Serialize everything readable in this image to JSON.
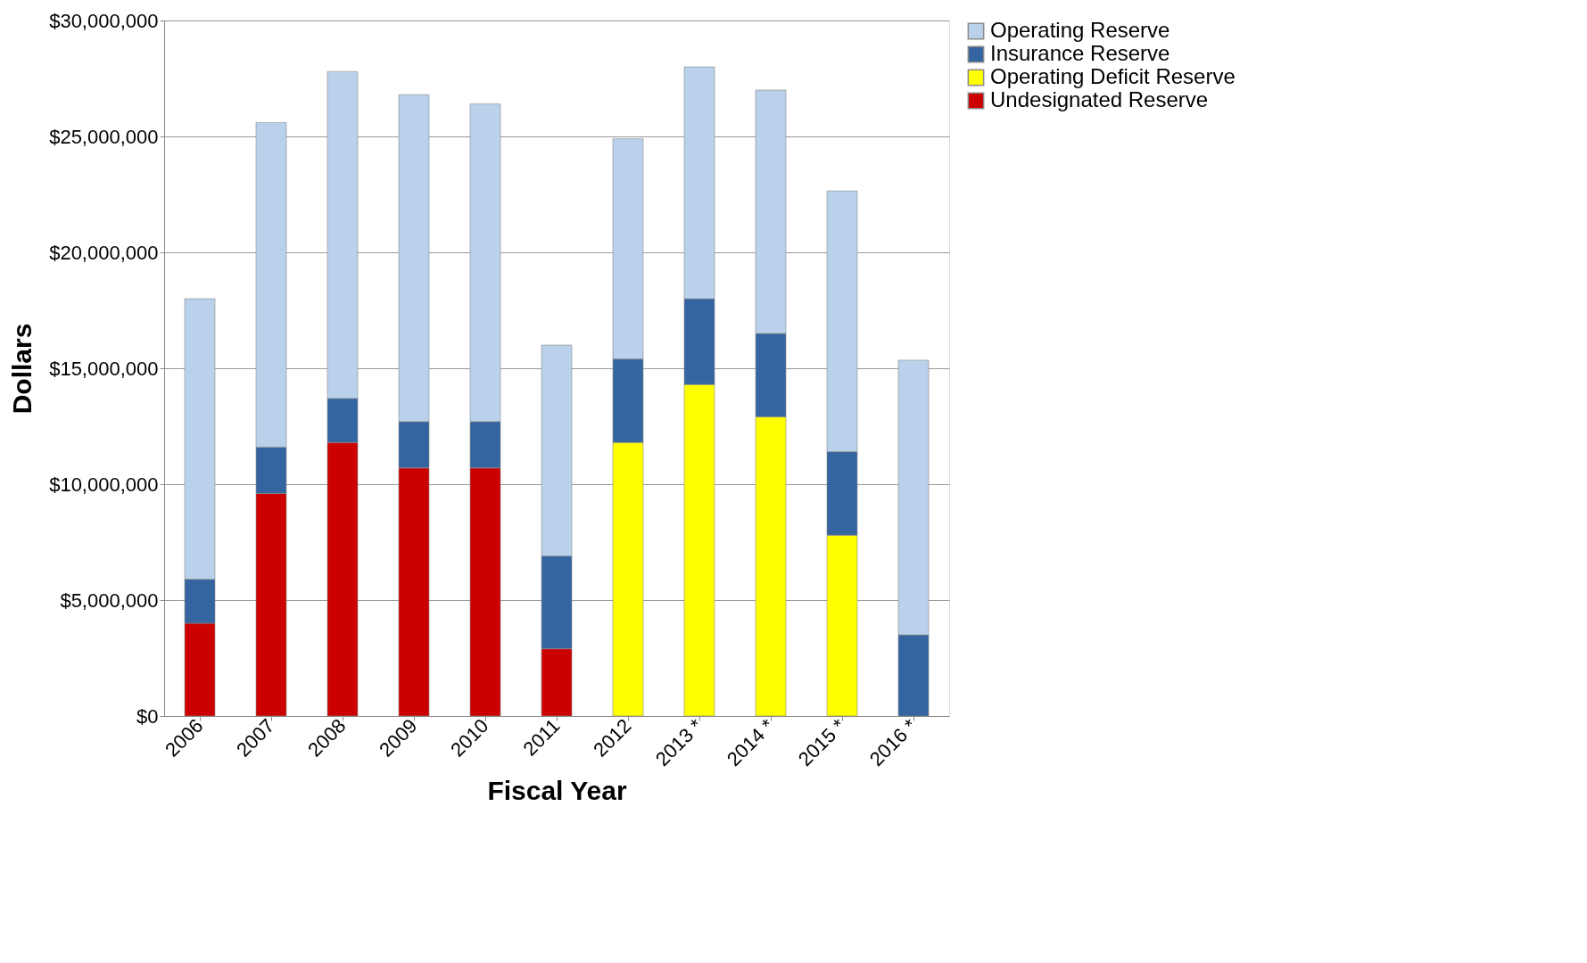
{
  "chart_data": {
    "type": "bar",
    "stacked": true,
    "xlabel": "Fiscal Year",
    "ylabel": "Dollars",
    "categories": [
      "2006",
      "2007",
      "2008",
      "2009",
      "2010",
      "2011",
      "2012",
      "2013 *",
      "2014 *",
      "2015 *",
      "2016 *"
    ],
    "series": [
      {
        "name": "Undesignated Reserve",
        "color": "#cc0000",
        "values": [
          4000000,
          9600000,
          11800000,
          10700000,
          10700000,
          2900000,
          null,
          null,
          null,
          null,
          null
        ]
      },
      {
        "name": "Operating Deficit Reserve",
        "color": "#ffff00",
        "values": [
          null,
          null,
          null,
          null,
          null,
          null,
          11800000,
          14300000,
          12900000,
          7800000,
          null
        ]
      },
      {
        "name": "Insurance Reserve",
        "color": "#3565a0",
        "values": [
          1900000,
          2000000,
          1900000,
          2000000,
          2000000,
          4000000,
          3600000,
          3700000,
          3600000,
          3600000,
          3500000
        ]
      },
      {
        "name": "Operating Reserve",
        "color": "#b9d1ea",
        "values": [
          12100000,
          14000000,
          14100000,
          14100000,
          13700000,
          9100000,
          9500000,
          10000000,
          10500000,
          11250000,
          11850000
        ]
      }
    ],
    "ylim": [
      0,
      30000000
    ],
    "yticks": [
      {
        "value": 0,
        "label": "$0"
      },
      {
        "value": 5000000,
        "label": "$5,000,000"
      },
      {
        "value": 10000000,
        "label": "$10,000,000"
      },
      {
        "value": 15000000,
        "label": "$15,000,000"
      },
      {
        "value": 20000000,
        "label": "$20,000,000"
      },
      {
        "value": 25000000,
        "label": "$25,000,000"
      },
      {
        "value": 30000000,
        "label": "$30,000,000"
      }
    ],
    "grid": "y",
    "legend": "right"
  }
}
